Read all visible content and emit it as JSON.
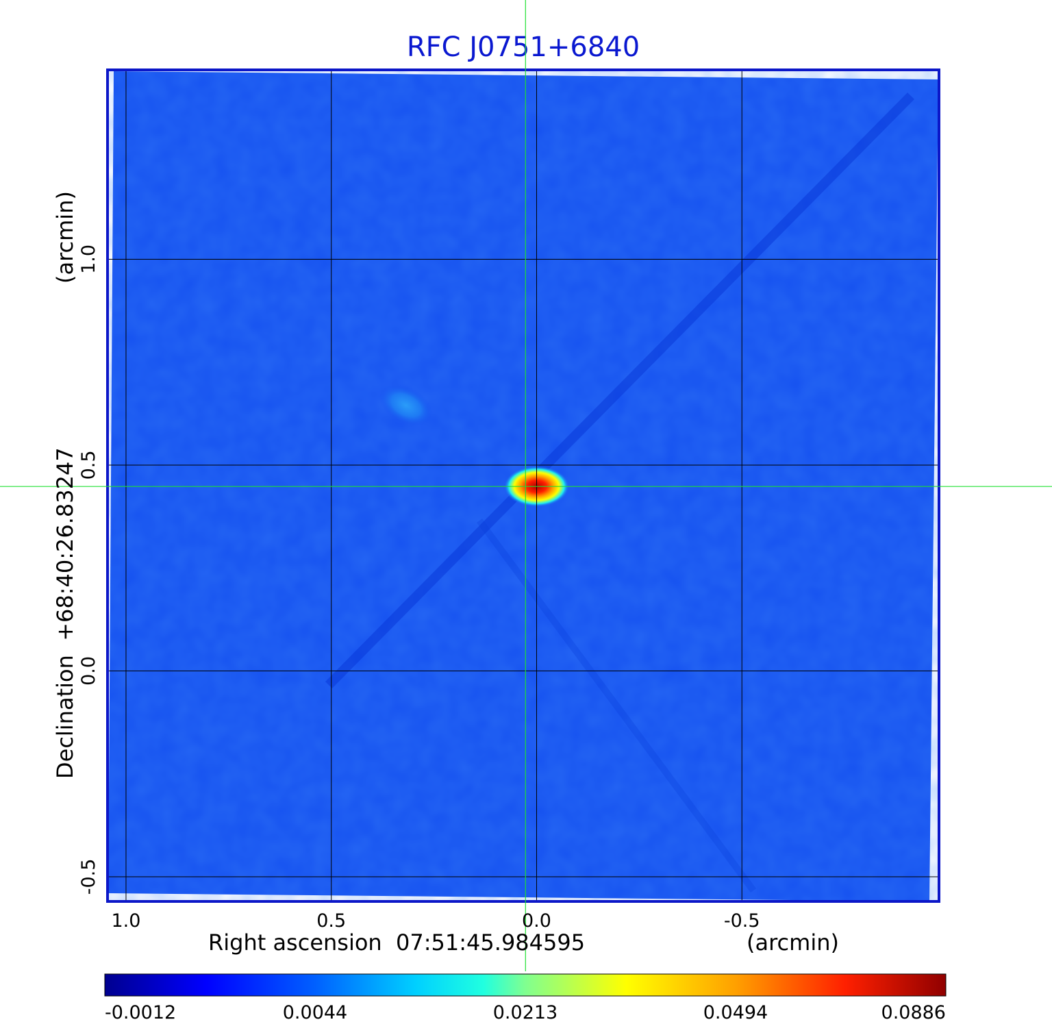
{
  "chart_data": {
    "type": "heatmap",
    "title": "RFC J0751+6840",
    "xlabel": "Right ascension  07:51:45.984595",
    "xunit": "(arcmin)",
    "ylabel": "Declination  +68:40:26.83247",
    "yunit": "(arcmin)",
    "x_ticks": [
      "1.0",
      "0.5",
      "0.0",
      "-0.5"
    ],
    "y_ticks": [
      "1.0",
      "0.5",
      "0.0",
      "-0.5"
    ],
    "x_tick_values": [
      1.0,
      0.5,
      0.0,
      -0.5
    ],
    "y_tick_values": [
      1.0,
      0.5,
      0.0,
      -0.5
    ],
    "xlim": [
      1.045,
      -0.98
    ],
    "ylim": [
      -0.56,
      1.46
    ],
    "grid": true,
    "crosshair": {
      "x": 0.027,
      "y": 0.448
    },
    "sources": [
      {
        "x": 0.0,
        "y": 0.448,
        "peak": 0.0886,
        "kind": "compact core"
      },
      {
        "x": 0.318,
        "y": 0.645,
        "peak": 0.006,
        "kind": "faint component"
      }
    ],
    "colorbar": {
      "ticks": [
        "-0.0012",
        "0.0044",
        "0.0213",
        "0.0494",
        "0.0886"
      ],
      "min": -0.0012,
      "max": 0.0886
    },
    "colors": {
      "title": "#0a18d0",
      "frame": "#0b16c8",
      "background": "#1652f0",
      "crosshair": "#1fe030",
      "grid": "#000000"
    }
  }
}
